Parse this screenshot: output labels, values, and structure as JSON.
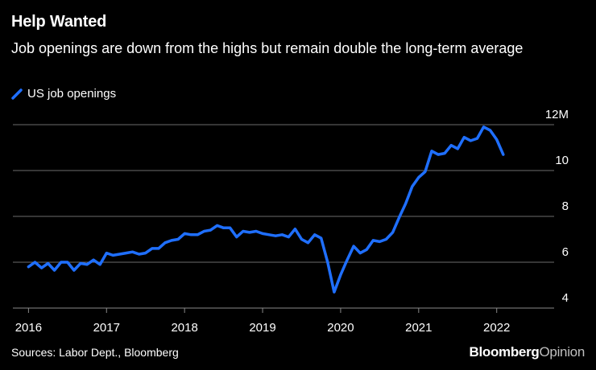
{
  "header": {
    "title": "Help Wanted",
    "subtitle": "Job openings are down from the highs but remain double the long-term average"
  },
  "footer": {
    "source": "Sources: Labor Dept., Bloomberg",
    "brand_main": "Bloomberg",
    "brand_suffix": "Opinion"
  },
  "chart_data": {
    "type": "line",
    "title": "Help Wanted",
    "subtitle": "Job openings are down from the highs but remain double the long-term average",
    "xlabel": "",
    "ylabel": "",
    "ylim": [
      4,
      12
    ],
    "yticks": [
      {
        "value": 12,
        "label": "12M"
      },
      {
        "value": 10,
        "label": "10"
      },
      {
        "value": 8,
        "label": "8"
      },
      {
        "value": 6,
        "label": "6"
      },
      {
        "value": 4,
        "label": "4"
      }
    ],
    "xticks": [
      {
        "value": 2016,
        "label": "2016"
      },
      {
        "value": 2017,
        "label": "2017"
      },
      {
        "value": 2018,
        "label": "2018"
      },
      {
        "value": 2019,
        "label": "2019"
      },
      {
        "value": 2020,
        "label": "2020"
      },
      {
        "value": 2021,
        "label": "2021"
      },
      {
        "value": 2022,
        "label": "2022"
      }
    ],
    "legend_position": "top-left",
    "grid": true,
    "series": [
      {
        "name": "US job openings",
        "color": "#1f6fff",
        "points": [
          [
            2016.0,
            5.8
          ],
          [
            2016.083,
            6.0
          ],
          [
            2016.167,
            5.75
          ],
          [
            2016.25,
            5.95
          ],
          [
            2016.333,
            5.65
          ],
          [
            2016.417,
            6.0
          ],
          [
            2016.5,
            6.0
          ],
          [
            2016.583,
            5.65
          ],
          [
            2016.667,
            5.95
          ],
          [
            2016.75,
            5.9
          ],
          [
            2016.833,
            6.1
          ],
          [
            2016.917,
            5.9
          ],
          [
            2017.0,
            6.4
          ],
          [
            2017.083,
            6.3
          ],
          [
            2017.167,
            6.35
          ],
          [
            2017.25,
            6.4
          ],
          [
            2017.333,
            6.45
          ],
          [
            2017.417,
            6.35
          ],
          [
            2017.5,
            6.4
          ],
          [
            2017.583,
            6.6
          ],
          [
            2017.667,
            6.6
          ],
          [
            2017.75,
            6.85
          ],
          [
            2017.833,
            6.95
          ],
          [
            2017.917,
            7.0
          ],
          [
            2018.0,
            7.25
          ],
          [
            2018.083,
            7.2
          ],
          [
            2018.167,
            7.2
          ],
          [
            2018.25,
            7.35
          ],
          [
            2018.333,
            7.4
          ],
          [
            2018.417,
            7.6
          ],
          [
            2018.5,
            7.5
          ],
          [
            2018.583,
            7.5
          ],
          [
            2018.667,
            7.1
          ],
          [
            2018.75,
            7.35
          ],
          [
            2018.833,
            7.3
          ],
          [
            2018.917,
            7.35
          ],
          [
            2019.0,
            7.25
          ],
          [
            2019.083,
            7.2
          ],
          [
            2019.167,
            7.15
          ],
          [
            2019.25,
            7.2
          ],
          [
            2019.333,
            7.1
          ],
          [
            2019.417,
            7.45
          ],
          [
            2019.5,
            7.0
          ],
          [
            2019.583,
            6.85
          ],
          [
            2019.667,
            7.2
          ],
          [
            2019.75,
            7.05
          ],
          [
            2019.833,
            6.0
          ],
          [
            2019.917,
            4.7
          ],
          [
            2020.0,
            5.45
          ],
          [
            2020.083,
            6.1
          ],
          [
            2020.167,
            6.7
          ],
          [
            2020.25,
            6.4
          ],
          [
            2020.333,
            6.55
          ],
          [
            2020.417,
            6.95
          ],
          [
            2020.5,
            6.9
          ],
          [
            2020.583,
            7.0
          ],
          [
            2020.667,
            7.3
          ],
          [
            2020.75,
            7.95
          ],
          [
            2020.833,
            8.55
          ],
          [
            2020.917,
            9.3
          ],
          [
            2021.0,
            9.7
          ],
          [
            2021.083,
            9.95
          ],
          [
            2021.167,
            10.85
          ],
          [
            2021.25,
            10.7
          ],
          [
            2021.333,
            10.75
          ],
          [
            2021.417,
            11.1
          ],
          [
            2021.5,
            10.95
          ],
          [
            2021.583,
            11.45
          ],
          [
            2021.667,
            11.3
          ],
          [
            2021.75,
            11.4
          ],
          [
            2021.833,
            11.9
          ],
          [
            2021.917,
            11.75
          ],
          [
            2022.0,
            11.35
          ],
          [
            2022.083,
            10.7
          ]
        ]
      }
    ]
  }
}
